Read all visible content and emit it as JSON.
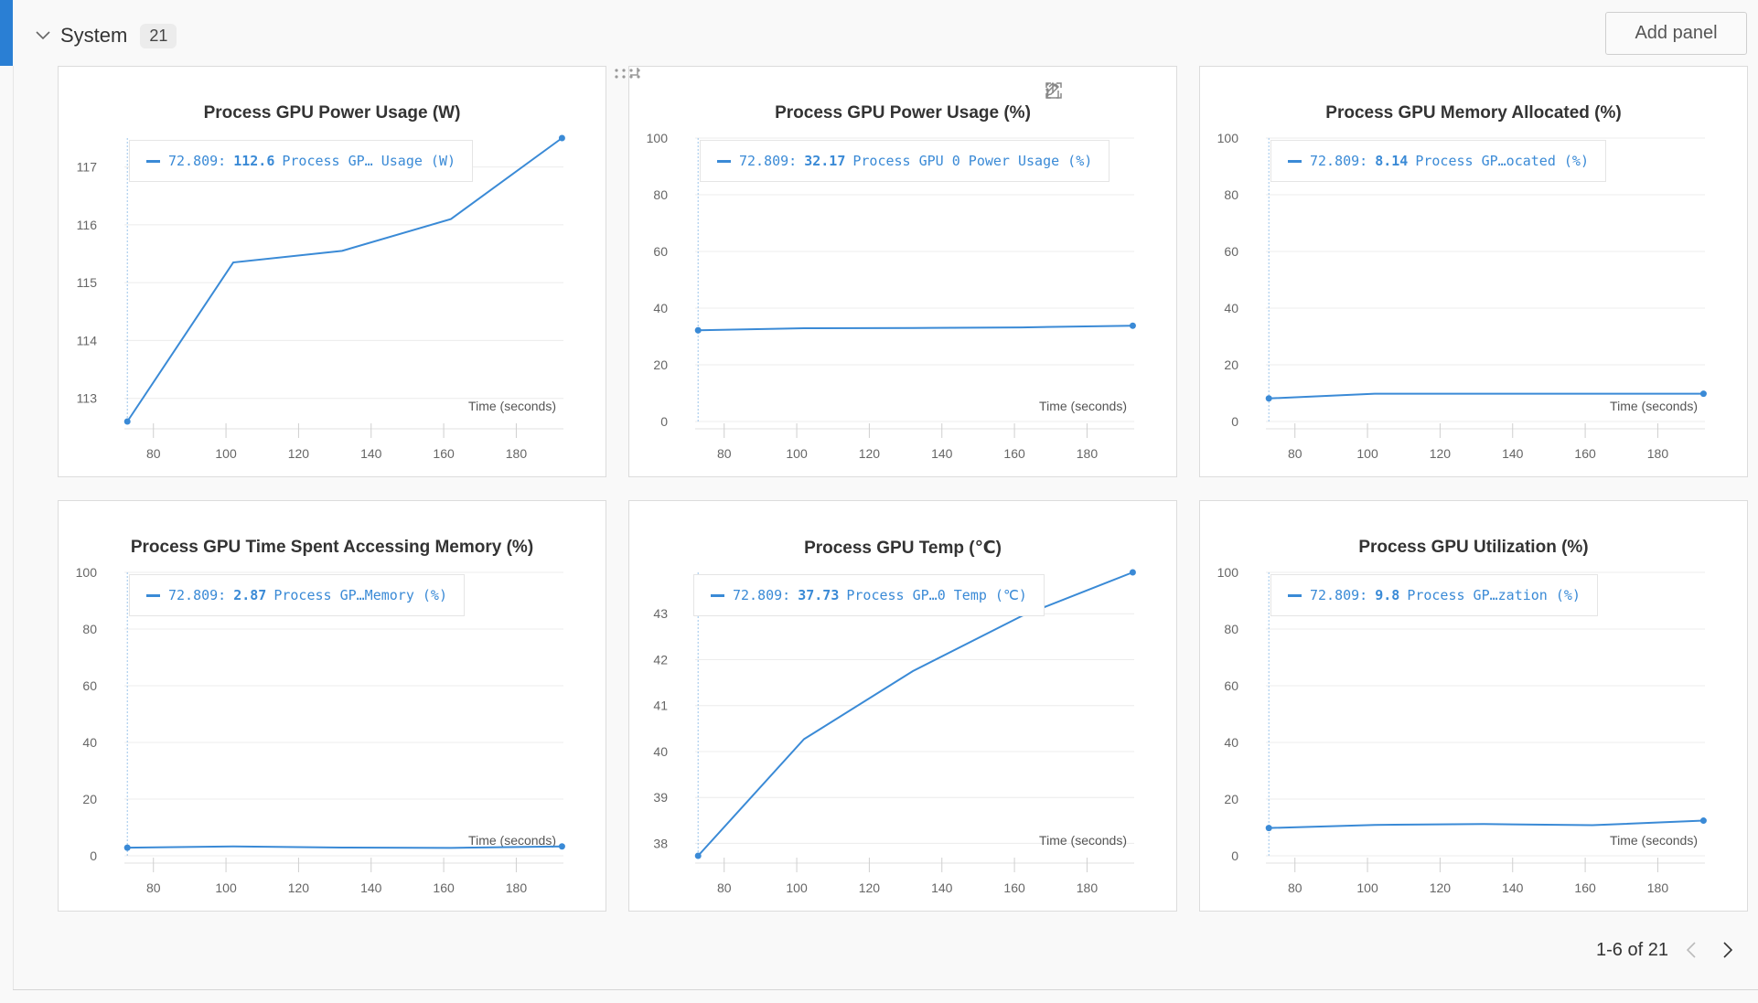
{
  "section": {
    "title": "System",
    "count": "21"
  },
  "add_panel_label": "Add panel",
  "pagination": {
    "label": "1-6 of 21"
  },
  "icons": {
    "collapse": "chevron-down-icon",
    "share": "share-icon",
    "edit": "pencil-icon",
    "fullscreen": "fullscreen-icon",
    "more": "more-vertical-icon",
    "drag": "drag-handle-icon",
    "prev": "chevron-left-icon",
    "next": "chevron-right-icon"
  },
  "colors": {
    "accent": "#2a7fd4",
    "series": "#3a8ad6",
    "grid": "#ececec"
  },
  "panels": [
    {
      "title": "Process GPU Power Usage (W)",
      "legend": {
        "x": "72.809:",
        "value": "112.6",
        "series": "Process GP… Usage (W)"
      }
    },
    {
      "title": "Process GPU Power Usage (%)",
      "legend": {
        "x": "72.809:",
        "value": "32.17",
        "series": "Process GPU 0 Power Usage (%)"
      }
    },
    {
      "title": "Process GPU Memory Allocated (%)",
      "legend": {
        "x": "72.809:",
        "value": "8.14",
        "series": "Process GP…ocated (%)"
      }
    },
    {
      "title": "Process GPU Time Spent Accessing Memory (%)",
      "legend": {
        "x": "72.809:",
        "value": "2.87",
        "series": "Process GP…Memory (%)"
      }
    },
    {
      "title": "Process GPU Temp (℃)",
      "legend": {
        "x": "72.809:",
        "value": "37.73",
        "series": "Process GP…0 Temp (℃)"
      }
    },
    {
      "title": "Process GPU Utilization (%)",
      "legend": {
        "x": "72.809:",
        "value": "9.8",
        "series": "Process GP…zation (%)"
      }
    }
  ],
  "chart_data": [
    {
      "type": "line",
      "title": "Process GPU Power Usage (W)",
      "xlabel": "Time (seconds)",
      "ylabel": "",
      "xlim": [
        72,
        193
      ],
      "ylim": [
        112.6,
        117.5
      ],
      "xticks": [
        80,
        100,
        120,
        140,
        160,
        180
      ],
      "yticks": [
        113,
        114,
        115,
        116,
        117
      ],
      "series": [
        {
          "name": "Process GPU 0 Power Usage (W)",
          "x": [
            72.809,
            102,
            132,
            162,
            192.6
          ],
          "y": [
            112.6,
            115.35,
            115.55,
            116.1,
            117.5
          ]
        }
      ]
    },
    {
      "type": "line",
      "title": "Process GPU Power Usage (%)",
      "xlabel": "Time (seconds)",
      "ylabel": "",
      "xlim": [
        72,
        193
      ],
      "ylim": [
        0,
        100
      ],
      "xticks": [
        80,
        100,
        120,
        140,
        160,
        180
      ],
      "yticks": [
        0,
        20,
        40,
        60,
        80,
        100
      ],
      "series": [
        {
          "name": "Process GPU 0 Power Usage (%)",
          "x": [
            72.809,
            102,
            132,
            162,
            192.6
          ],
          "y": [
            32.17,
            32.9,
            33.0,
            33.2,
            33.8
          ]
        }
      ]
    },
    {
      "type": "line",
      "title": "Process GPU Memory Allocated (%)",
      "xlabel": "Time (seconds)",
      "ylabel": "",
      "xlim": [
        72,
        193
      ],
      "ylim": [
        0,
        100
      ],
      "xticks": [
        80,
        100,
        120,
        140,
        160,
        180
      ],
      "yticks": [
        0,
        20,
        40,
        60,
        80,
        100
      ],
      "series": [
        {
          "name": "Process GPU 0 Memory Allocated (%)",
          "x": [
            72.809,
            102,
            132,
            162,
            192.6
          ],
          "y": [
            8.14,
            9.8,
            9.8,
            9.8,
            9.8
          ]
        }
      ]
    },
    {
      "type": "line",
      "title": "Process GPU Time Spent Accessing Memory (%)",
      "xlabel": "Time (seconds)",
      "ylabel": "",
      "xlim": [
        72,
        193
      ],
      "ylim": [
        0,
        100
      ],
      "xticks": [
        80,
        100,
        120,
        140,
        160,
        180
      ],
      "yticks": [
        0,
        20,
        40,
        60,
        80,
        100
      ],
      "series": [
        {
          "name": "Process GPU 0 Time Spent Accessing Memory (%)",
          "x": [
            72.809,
            102,
            132,
            162,
            192.6
          ],
          "y": [
            2.87,
            3.3,
            2.9,
            2.8,
            3.3
          ]
        }
      ]
    },
    {
      "type": "line",
      "title": "Process GPU Temp (℃)",
      "xlabel": "Time (seconds)",
      "ylabel": "",
      "xlim": [
        72,
        193
      ],
      "ylim": [
        37.73,
        43.9
      ],
      "xticks": [
        80,
        100,
        120,
        140,
        160,
        180
      ],
      "yticks": [
        38,
        39,
        40,
        41,
        42,
        43
      ],
      "series": [
        {
          "name": "Process GPU 0 Temp (℃)",
          "x": [
            72.809,
            102,
            132,
            162,
            192.6
          ],
          "y": [
            37.73,
            40.27,
            41.75,
            42.95,
            43.9
          ]
        }
      ]
    },
    {
      "type": "line",
      "title": "Process GPU Utilization (%)",
      "xlabel": "Time (seconds)",
      "ylabel": "",
      "xlim": [
        72,
        193
      ],
      "ylim": [
        0,
        100
      ],
      "xticks": [
        80,
        100,
        120,
        140,
        160,
        180
      ],
      "yticks": [
        0,
        20,
        40,
        60,
        80,
        100
      ],
      "series": [
        {
          "name": "Process GPU 0 Utilization (%)",
          "x": [
            72.809,
            102,
            132,
            162,
            192.6
          ],
          "y": [
            9.8,
            10.9,
            11.2,
            10.8,
            12.4
          ]
        }
      ]
    }
  ]
}
